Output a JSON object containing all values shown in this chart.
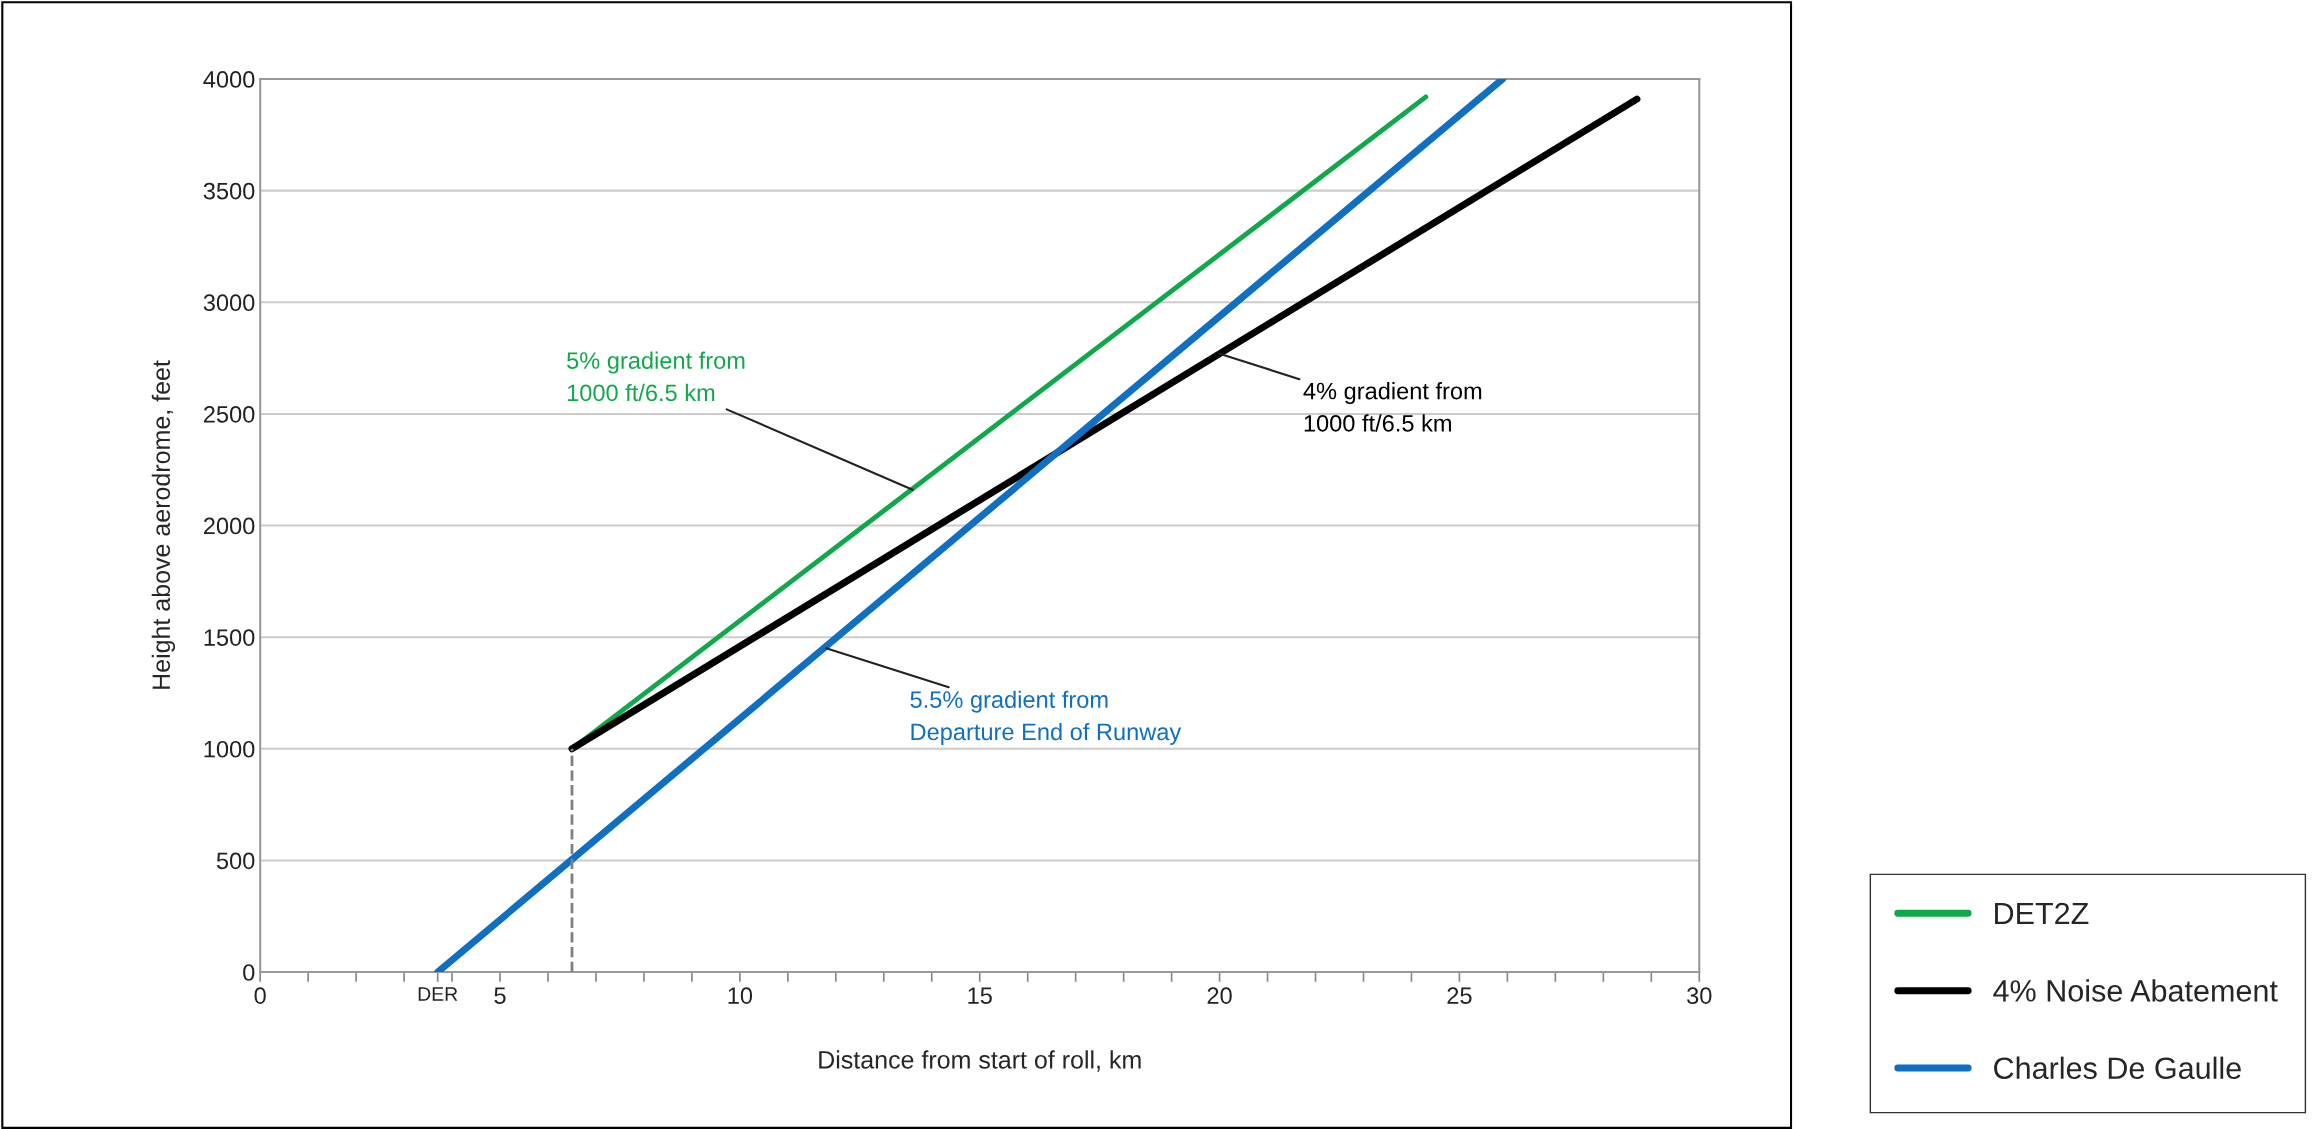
{
  "chart_data": {
    "type": "line",
    "xlabel": "Distance from start of roll, km",
    "ylabel": "Height above aerodrome, feet",
    "series": [
      {
        "name": "DET2Z",
        "color": "#10a84a",
        "x": [
          6.5,
          24.3
        ],
        "values": [
          1000,
          3920
        ]
      },
      {
        "name": "4% Noise Abatement",
        "color": "#000000",
        "x": [
          6.5,
          28.7
        ],
        "values": [
          1000,
          3910
        ]
      },
      {
        "name": "Charles De Gaulle",
        "color": "#0f6fc0",
        "x": [
          3.7,
          25.9
        ],
        "values": [
          0,
          4000
        ]
      },
      {
        "color": "#808080",
        "x": [
          6.5,
          6.5
        ],
        "values": [
          0,
          1000
        ],
        "line_style": "dashed"
      }
    ],
    "annotations": [
      {
        "text": "5% gradient from\n1000 ft/6.5 km",
        "x": 13.6,
        "y": 2160
      },
      {
        "text": "4% gradient from\n1000 ft/6.5 km",
        "x": 20,
        "y": 2770
      },
      {
        "text": "5.5% gradient from\nDeparture End of Runway",
        "x": 11.8,
        "y": 1450
      }
    ],
    "xlim": [
      0,
      30
    ],
    "ylim": [
      0,
      4000
    ],
    "xticks": [
      0,
      {
        "value": 1,
        "label": null
      },
      {
        "value": 2,
        "label": null
      },
      {
        "value": 3,
        "label": null
      },
      {
        "value": 3.7,
        "label": "DER"
      },
      {
        "value": 4,
        "label": null
      },
      5,
      {
        "value": 6,
        "label": null
      },
      {
        "value": 7,
        "label": null
      },
      {
        "value": 8,
        "label": null
      },
      {
        "value": 9,
        "label": null
      },
      10,
      {
        "value": 11,
        "label": null
      },
      {
        "value": 12,
        "label": null
      },
      {
        "value": 13,
        "label": null
      },
      {
        "value": 14,
        "label": null
      },
      15,
      {
        "value": 16,
        "label": null
      },
      {
        "value": 17,
        "label": null
      },
      {
        "value": 18,
        "label": null
      },
      {
        "value": 19,
        "label": null
      },
      20,
      {
        "value": 21,
        "label": null
      },
      {
        "value": 22,
        "label": null
      },
      {
        "value": 23,
        "label": null
      },
      {
        "value": 24,
        "label": null
      },
      25,
      {
        "value": 26,
        "label": null
      },
      {
        "value": 27,
        "label": null
      },
      {
        "value": 28,
        "label": null
      },
      {
        "value": 29,
        "label": null
      },
      30
    ],
    "yticks": [
      0,
      500,
      1000,
      1500,
      2000,
      2500,
      3000,
      3500,
      4000
    ],
    "grid": "y",
    "legend": "bottom right",
    "line_style": "solid",
    "marker": "none"
  }
}
